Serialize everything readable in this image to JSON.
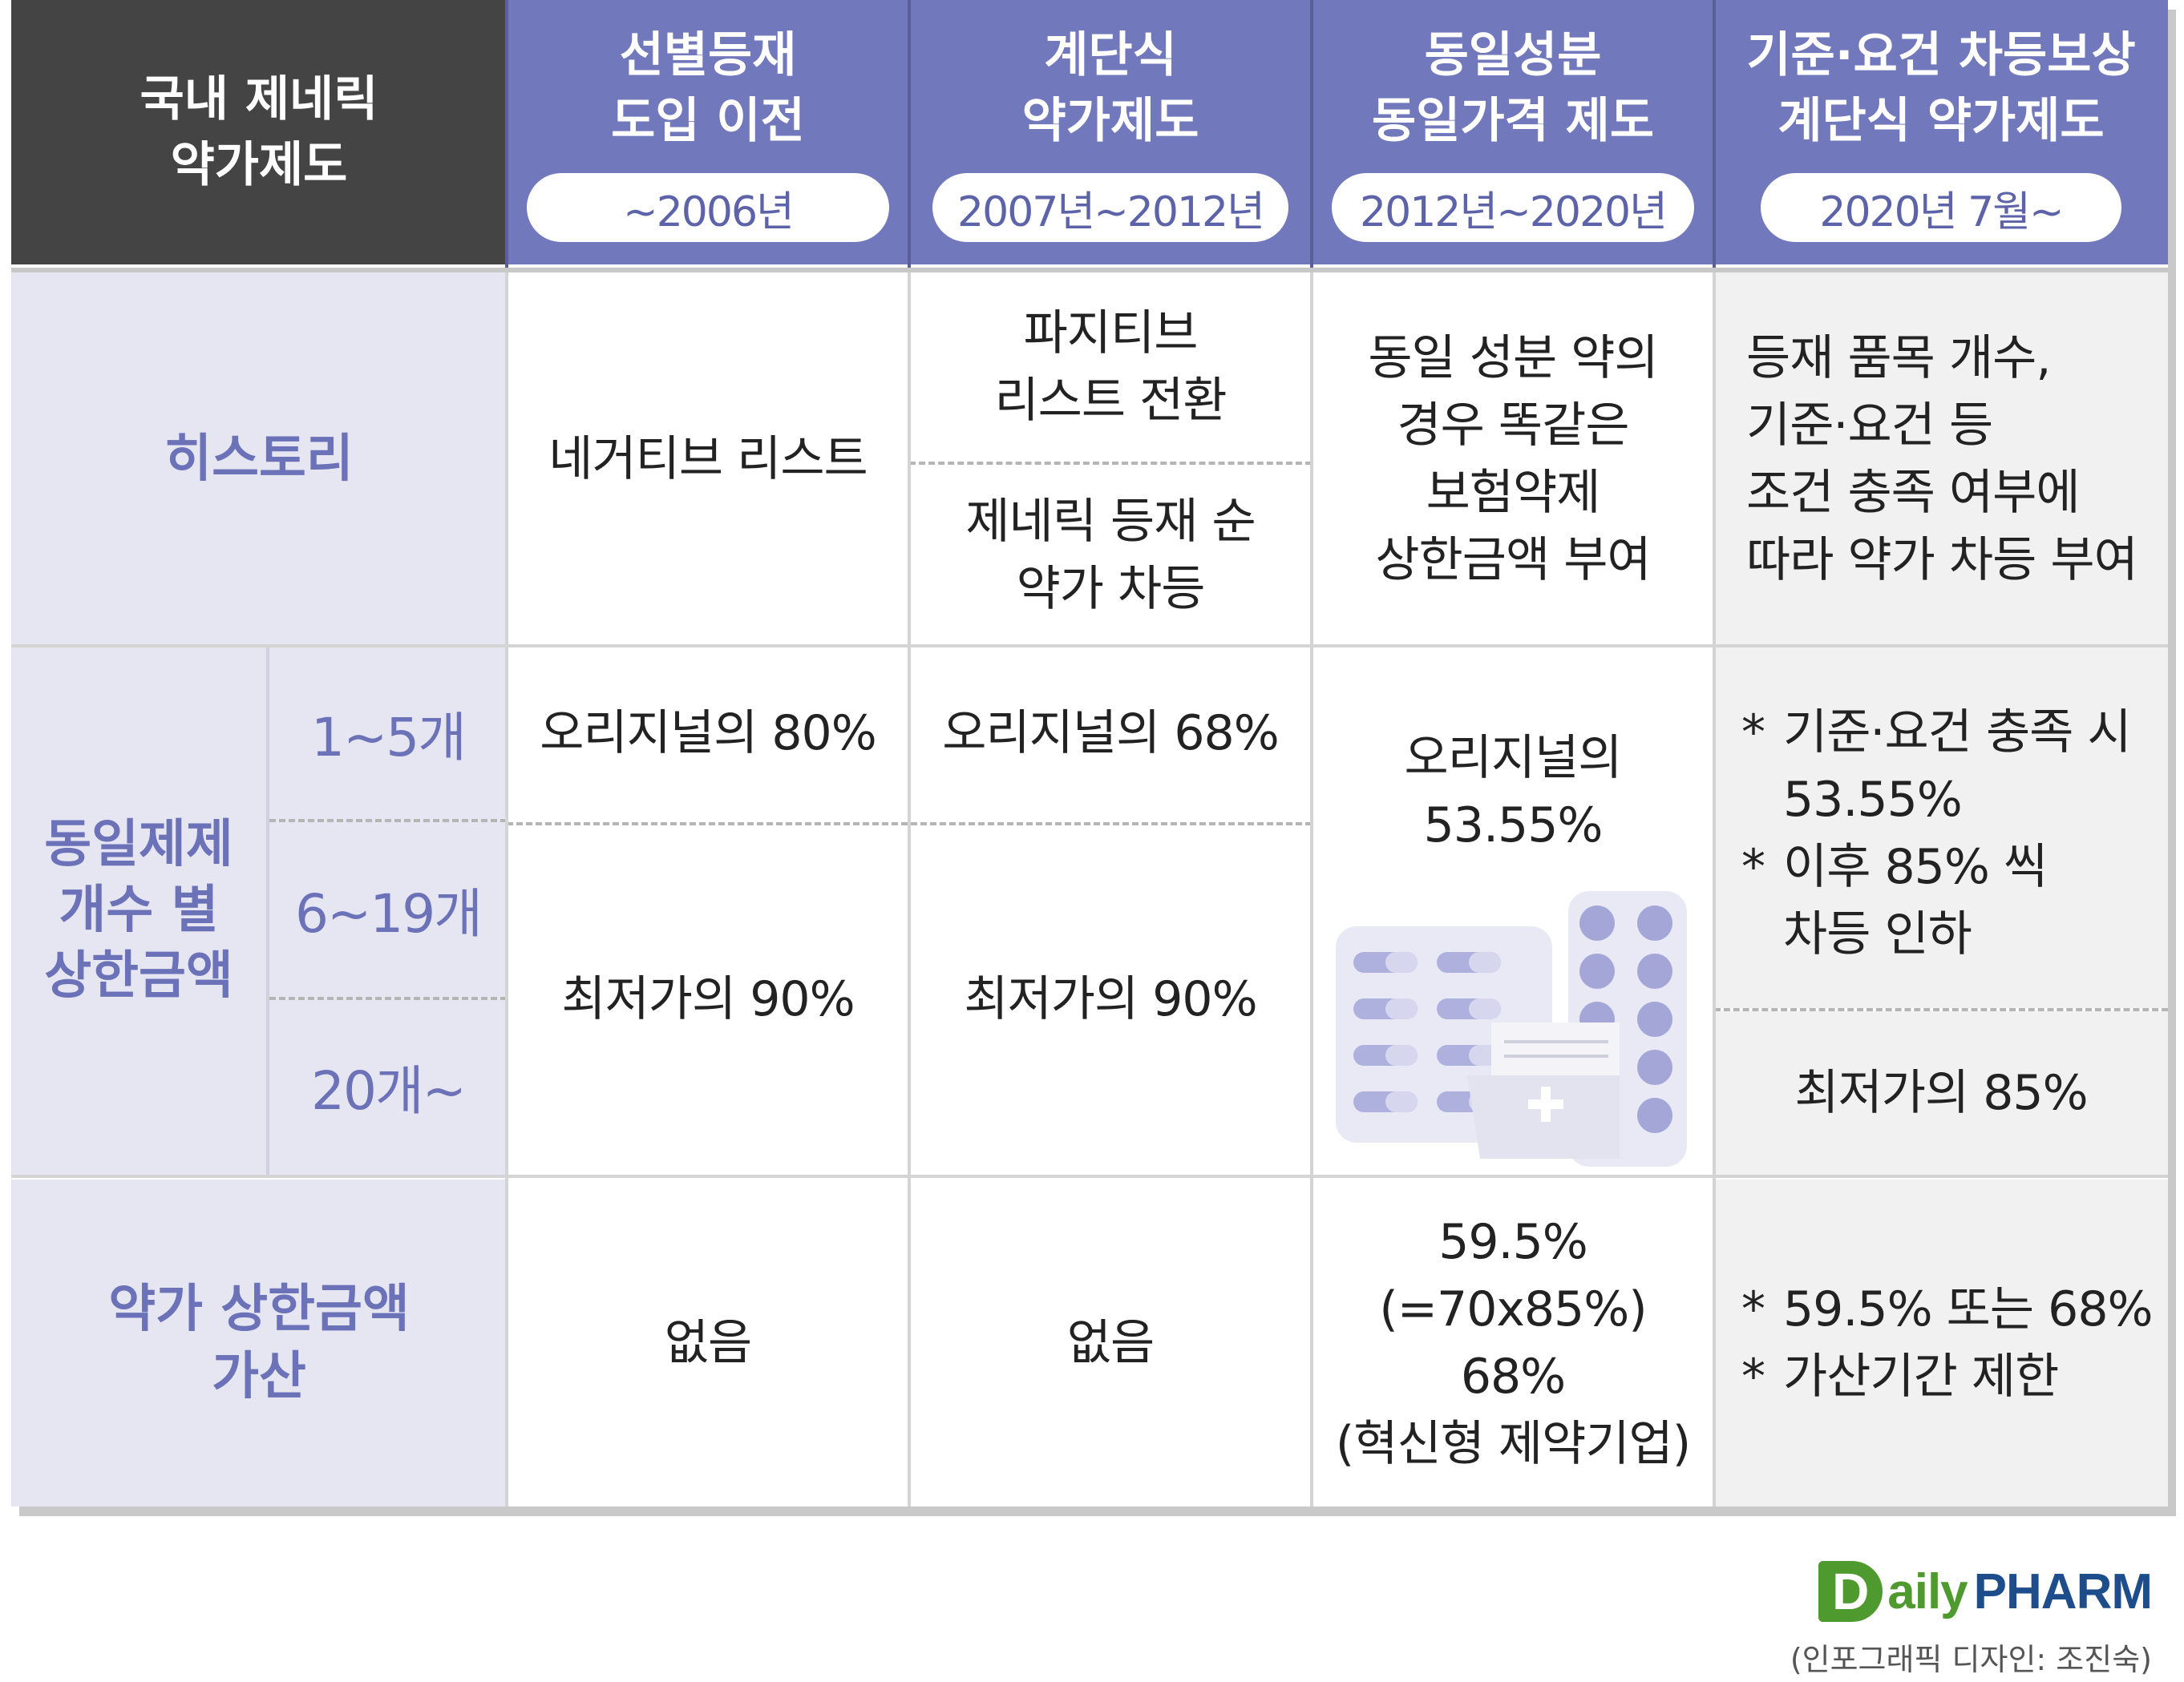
{
  "header": {
    "corner_title": [
      "국내 제네릭",
      "약가제도"
    ],
    "columns": [
      {
        "title": [
          "선별등재",
          "도입 이전"
        ],
        "period": "~2006년"
      },
      {
        "title": [
          "계단식",
          "약가제도"
        ],
        "period": "2007년~2012년"
      },
      {
        "title": [
          "동일성분",
          "동일가격 제도"
        ],
        "period": "2012년~2020년"
      },
      {
        "title": [
          "기준·요건 차등보상",
          "계단식 약가제도"
        ],
        "period": "2020년 7월~"
      }
    ]
  },
  "rows": {
    "history": {
      "label": "히스토리",
      "c1": "네거티브 리스트",
      "c2_top": [
        "파지티브",
        "리스트 전환"
      ],
      "c2_bottom": [
        "제네릭 등재 순",
        "약가 차등"
      ],
      "c3": [
        "동일 성분 약의",
        "경우 똑같은",
        "보험약제",
        "상한금액 부여"
      ],
      "c4": [
        "등재 품목 개수,",
        "기준·요건 등",
        "조건 충족 여부에",
        "따라 약가 차등 부여"
      ]
    },
    "ceiling": {
      "label": [
        "동일제제",
        "개수 별",
        "상한금액"
      ],
      "sub": [
        "1~5개",
        "6~19개",
        "20개~"
      ],
      "c1_a": "오리지널의 80%",
      "c1_b": "최저가의 90%",
      "c2_a": "오리지널의 68%",
      "c2_b": "최저가의 90%",
      "c3": [
        "오리지널의",
        "53.55%"
      ],
      "c4_bullet1": "기준·요건 충족 시",
      "c4_bullet1_cont": "53.55%",
      "c4_bullet2": "이후 85% 씩",
      "c4_bullet2_cont": "차등 인하",
      "c4_b": "최저가의 85%"
    },
    "addon": {
      "label": [
        "약가 상한금액",
        "가산"
      ],
      "c1": "없음",
      "c2": "없음",
      "c3": [
        "59.5%",
        "(=70x85%)",
        "68%",
        "(혁신형 제약기업)"
      ],
      "c4_bullets": [
        "59.5% 또는 68%",
        "가산기간 제한"
      ]
    }
  },
  "footer": {
    "logo_d": "D",
    "logo_aily": "aily",
    "logo_pharm": "PHARM",
    "credit": "(인포그래픽 디자인: 조진숙)"
  },
  "colors": {
    "header_dark": "#444444",
    "header_purple": "#7178bb",
    "label_bg": "#e6e6f3",
    "label_text": "#6c72b8",
    "logo_green": "#4f9a2e",
    "logo_blue": "#1e4d8c"
  }
}
